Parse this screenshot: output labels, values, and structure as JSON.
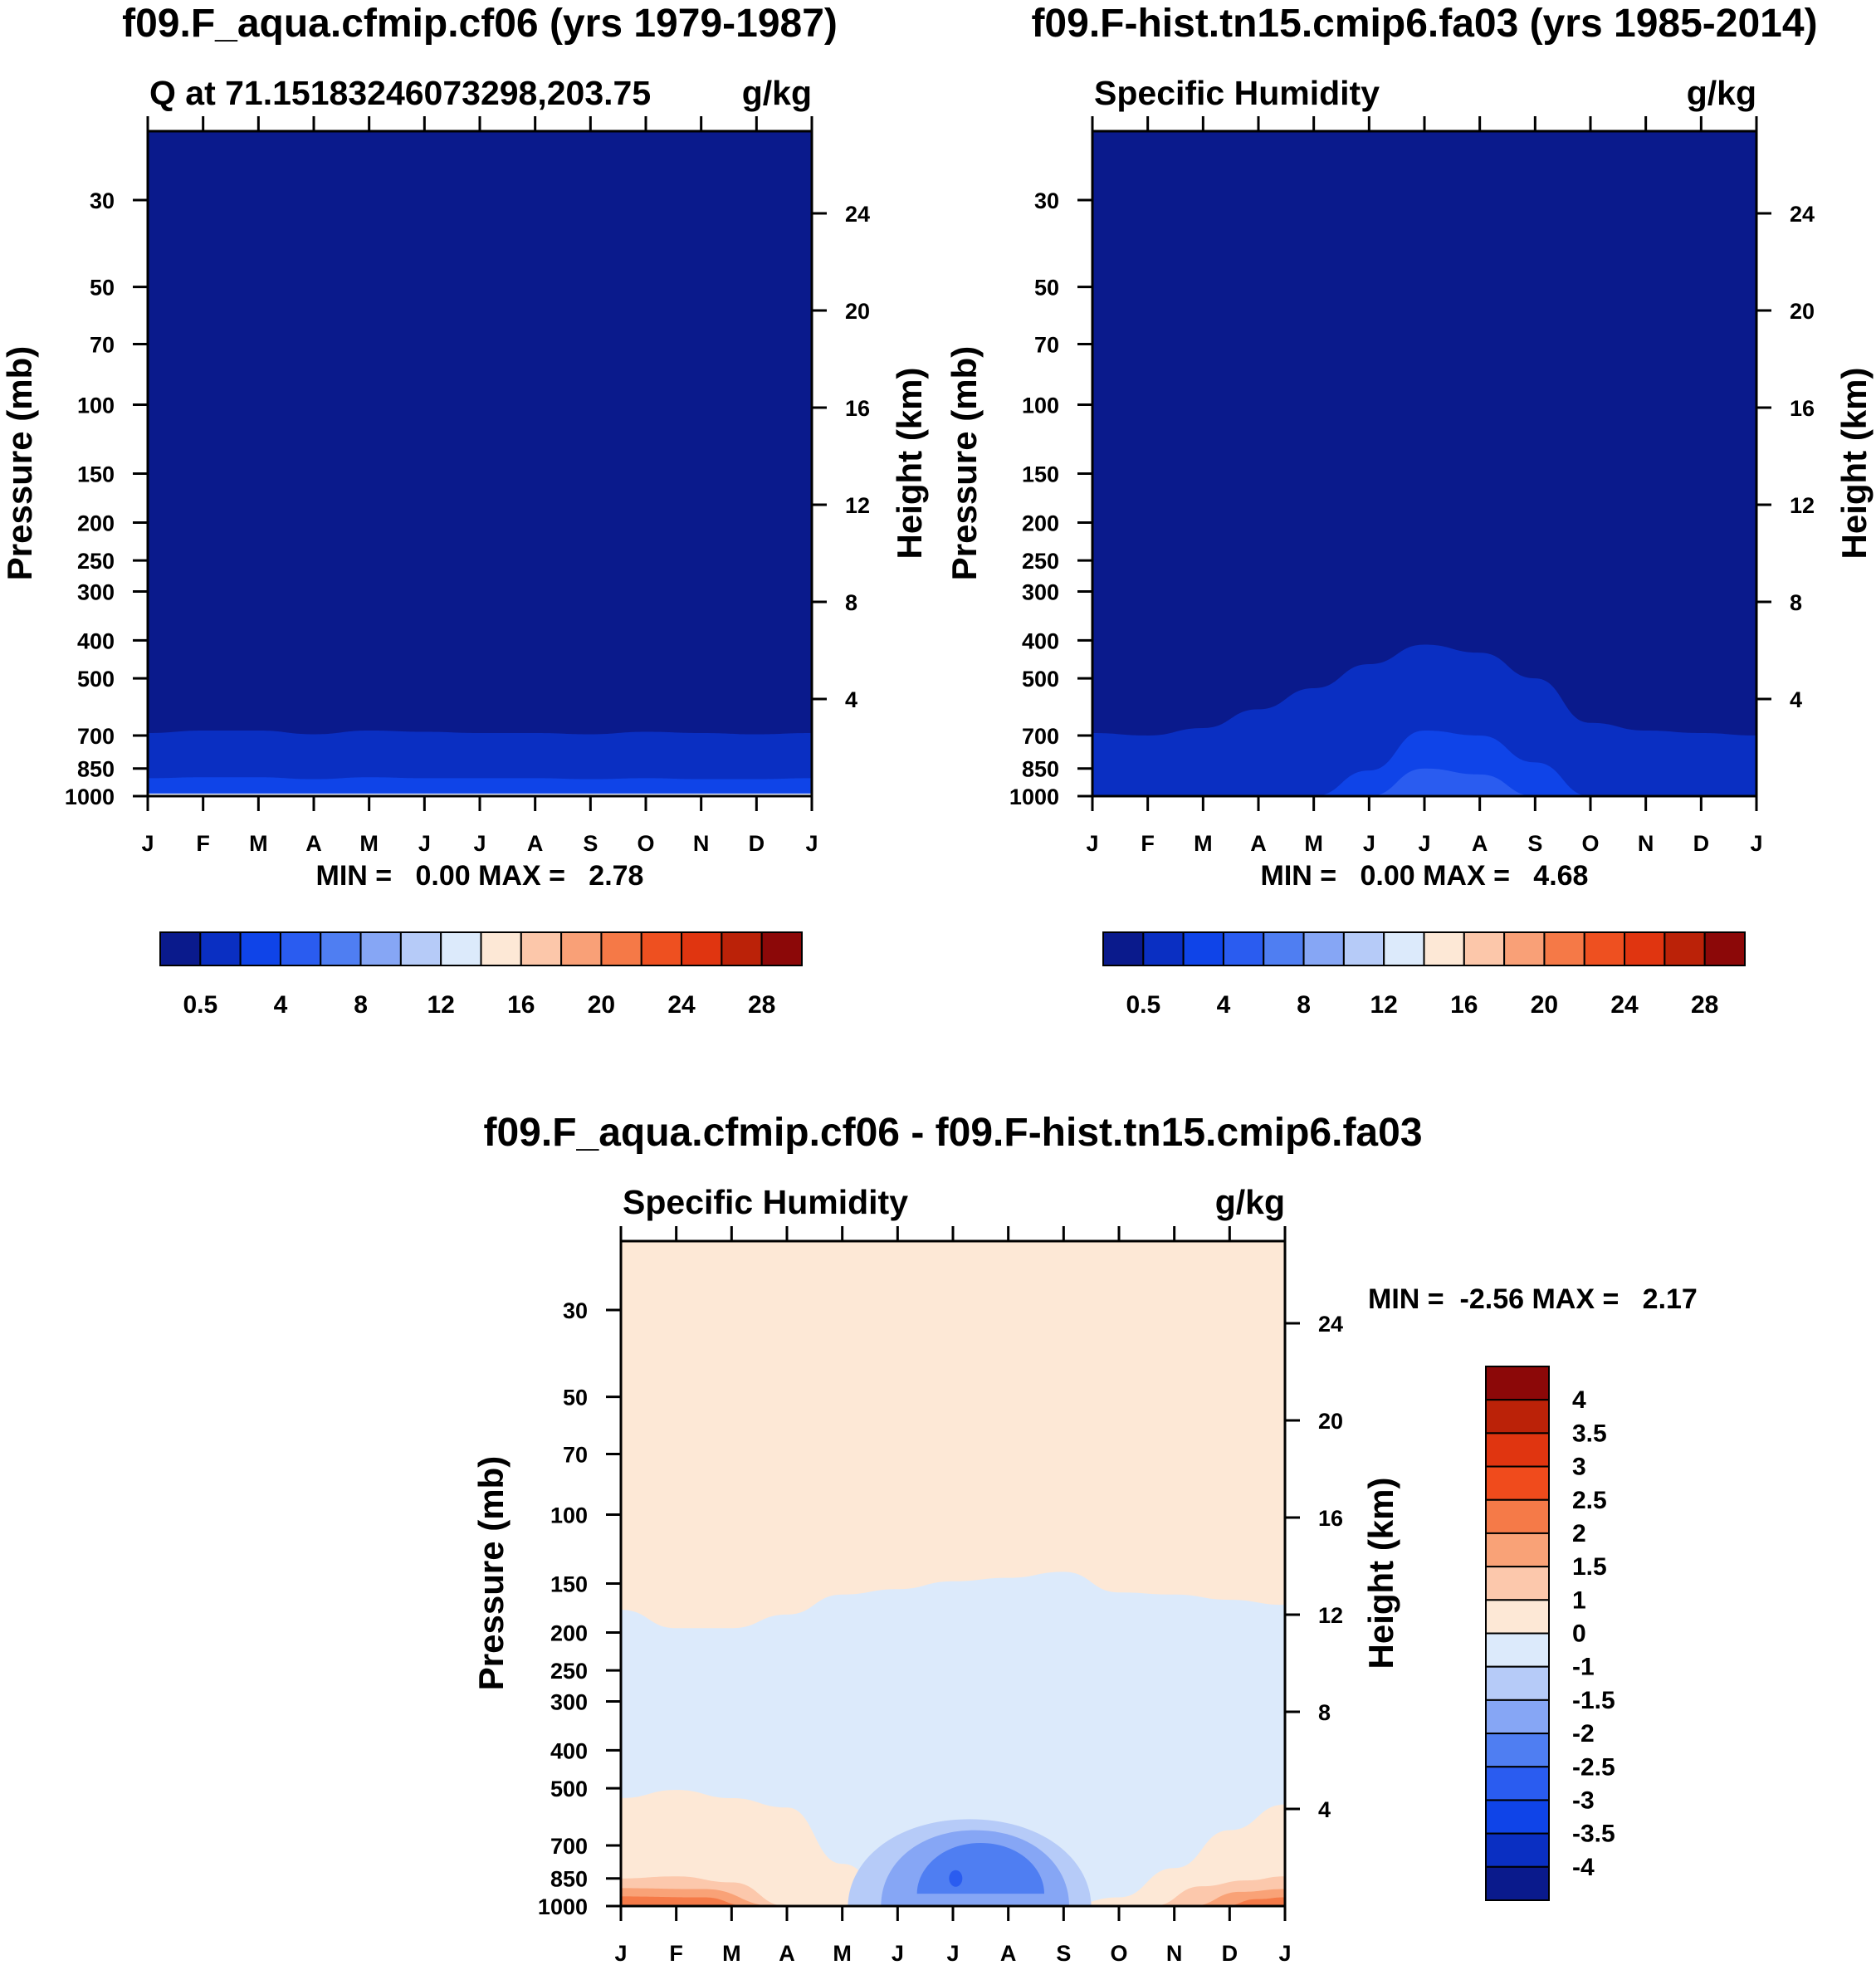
{
  "chart_data": [
    {
      "type": "heatmap",
      "panel": "top-left",
      "title": "f09.F_aqua.cfmip.cf06 (yrs 1979-1987)",
      "left_string": "Q at 71.15183246073298,203.75",
      "right_string": "g/kg",
      "xlabel": "",
      "ylabel": "Pressure (mb)",
      "y2label": "Height (km)",
      "x_ticks": [
        "J",
        "F",
        "M",
        "A",
        "M",
        "J",
        "J",
        "A",
        "S",
        "O",
        "N",
        "D",
        "J"
      ],
      "y_ticks": [
        30,
        50,
        70,
        100,
        150,
        200,
        250,
        300,
        400,
        500,
        700,
        850,
        1000
      ],
      "y2_ticks": [
        24,
        20,
        16,
        12,
        8,
        4
      ],
      "stats_text": "MIN =   0.00 MAX =   2.78",
      "min": 0.0,
      "max": 2.78,
      "contour_levels": [
        0.2,
        0.5,
        1,
        2,
        4,
        6,
        8,
        10,
        12,
        14,
        16,
        18,
        20,
        22,
        24,
        26,
        28
      ],
      "contours": [
        {
          "level": 0.2,
          "pressure_by_month": [
            690,
            680,
            680,
            695,
            680,
            685,
            690,
            690,
            695,
            685,
            690,
            695,
            690
          ]
        },
        {
          "level": 0.5,
          "pressure_by_month": [
            900,
            895,
            895,
            905,
            895,
            900,
            900,
            900,
            905,
            900,
            905,
            905,
            900
          ]
        },
        {
          "level": 1,
          "pressure_by_month": [
            985,
            985,
            985,
            985,
            985,
            985,
            985,
            985,
            985,
            985,
            985,
            985,
            985
          ]
        }
      ],
      "colorbar": {
        "orientation": "horizontal",
        "labels": [
          "0.5",
          "4",
          "8",
          "12",
          "16",
          "20",
          "24",
          "28"
        ],
        "colors": [
          "#0a1a8c",
          "#0a2fc2",
          "#0f44e8",
          "#2a5cf0",
          "#4f7ef2",
          "#86a6f5",
          "#b6cbf8",
          "#dceafb",
          "#fde8d6",
          "#fcc7aa",
          "#f9a077",
          "#f57947",
          "#ee5020",
          "#e03510",
          "#bb2208",
          "#8c0808"
        ]
      }
    },
    {
      "type": "heatmap",
      "panel": "top-right",
      "title": "f09.F-hist.tn15.cmip6.fa03 (yrs 1985-2014)",
      "left_string": "Specific Humidity",
      "right_string": "g/kg",
      "xlabel": "",
      "ylabel": "Pressure (mb)",
      "y2label": "Height (km)",
      "x_ticks": [
        "J",
        "F",
        "M",
        "A",
        "M",
        "J",
        "J",
        "A",
        "S",
        "O",
        "N",
        "D",
        "J"
      ],
      "y_ticks": [
        30,
        50,
        70,
        100,
        150,
        200,
        250,
        300,
        400,
        500,
        700,
        850,
        1000
      ],
      "y2_ticks": [
        24,
        20,
        16,
        12,
        8,
        4
      ],
      "stats_text": "MIN =   0.00 MAX =   4.68",
      "min": 0.0,
      "max": 4.68,
      "contour_levels": [
        0.2,
        0.5,
        1,
        2,
        4,
        6,
        8,
        10,
        12,
        14,
        16,
        18,
        20,
        22,
        24,
        26,
        28
      ],
      "contours": [
        {
          "level": 0.2,
          "pressure_by_month": [
            690,
            700,
            670,
            600,
            530,
            460,
            410,
            430,
            500,
            650,
            680,
            690,
            700
          ]
        },
        {
          "level": 0.5,
          "pressure_by_month": [
            1000,
            1000,
            1000,
            1000,
            1000,
            860,
            680,
            700,
            820,
            1000,
            1000,
            1000,
            1000
          ]
        },
        {
          "level": 1,
          "pressure_by_month": [
            1000,
            1000,
            1000,
            1000,
            1000,
            1000,
            850,
            880,
            1000,
            1000,
            1000,
            1000,
            1000
          ]
        }
      ],
      "colorbar": {
        "orientation": "horizontal",
        "labels": [
          "0.5",
          "4",
          "8",
          "12",
          "16",
          "20",
          "24",
          "28"
        ],
        "colors": [
          "#0a1a8c",
          "#0a2fc2",
          "#0f44e8",
          "#2a5cf0",
          "#4f7ef2",
          "#86a6f5",
          "#b6cbf8",
          "#dceafb",
          "#fde8d6",
          "#fcc7aa",
          "#f9a077",
          "#f57947",
          "#ee5020",
          "#e03510",
          "#bb2208",
          "#8c0808"
        ]
      }
    },
    {
      "type": "heatmap",
      "panel": "bottom",
      "title": "f09.F_aqua.cfmip.cf06 - f09.F-hist.tn15.cmip6.fa03",
      "left_string": "Specific Humidity",
      "right_string": "g/kg",
      "xlabel": "",
      "ylabel": "Pressure (mb)",
      "y2label": "Height (km)",
      "x_ticks": [
        "J",
        "F",
        "M",
        "A",
        "M",
        "J",
        "J",
        "A",
        "S",
        "O",
        "N",
        "D",
        "J"
      ],
      "y_ticks": [
        30,
        50,
        70,
        100,
        150,
        200,
        250,
        300,
        400,
        500,
        700,
        850,
        1000
      ],
      "y2_ticks": [
        24,
        20,
        16,
        12,
        8,
        4
      ],
      "stats_text": "MIN =  -2.56 MAX =   2.17",
      "min": -2.56,
      "max": 2.17,
      "contour_levels": [
        -4,
        -3.5,
        -3,
        -2.5,
        -2,
        -1.5,
        -1,
        0,
        1,
        1.5,
        2,
        2.5,
        3,
        3.5,
        4
      ],
      "upper_region_value_range": [
        0,
        1
      ],
      "middle_region_value_range": [
        -1,
        0
      ],
      "zero_contour_top_pressure_by_month": [
        175,
        195,
        195,
        180,
        160,
        155,
        148,
        145,
        140,
        158,
        160,
        165,
        170
      ],
      "zero_contour_bottom_pressure_by_month": [
        530,
        505,
        530,
        560,
        780,
        1000,
        1000,
        1000,
        1000,
        950,
        800,
        640,
        550
      ],
      "negative_minimum_location": {
        "month": "J",
        "pressure": 850,
        "value_range": [
          -2.5,
          -2
        ]
      },
      "colorbar": {
        "orientation": "vertical",
        "labels": [
          "4",
          "3.5",
          "3",
          "2.5",
          "2",
          "1.5",
          "1",
          "0",
          "-1",
          "-1.5",
          "-2",
          "-2.5",
          "-3",
          "-3.5",
          "-4"
        ],
        "colors": [
          "#8c0808",
          "#bb2208",
          "#e03510",
          "#f04b1c",
          "#f57a48",
          "#f9a277",
          "#fcc8ac",
          "#fde8d6",
          "#dceafb",
          "#b6cbf8",
          "#86a6f5",
          "#4f7ef2",
          "#2a5cf0",
          "#0f44e8",
          "#0a2fc2",
          "#0a1a8c"
        ]
      }
    }
  ]
}
